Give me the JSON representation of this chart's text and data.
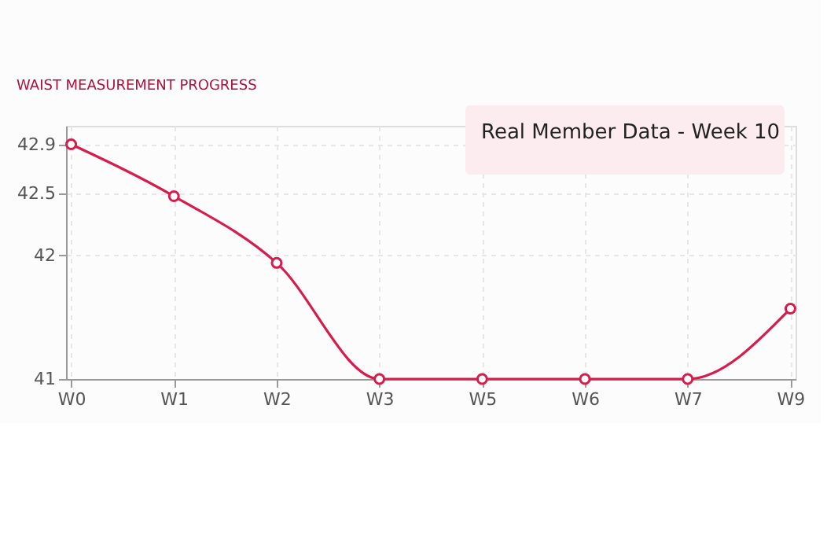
{
  "chart_data": {
    "type": "line",
    "title": "WAIST MEASUREMENT PROGRESS",
    "annotations": [
      "Real Member Data - Week 10"
    ],
    "categories": [
      "W0",
      "W1",
      "W2",
      "W3",
      "W5",
      "W6",
      "W7",
      "W9"
    ],
    "series": [
      {
        "color": "#d81b4a",
        "values": [
          42.9,
          42.48,
          41.94,
          41,
          41,
          41,
          41,
          41.57
        ]
      }
    ],
    "ylim": [
      41,
      43.05
    ],
    "yticks": [
      41,
      42,
      42.5,
      42.9
    ],
    "grid": true,
    "marker": "circle",
    "line_style": "solid"
  }
}
